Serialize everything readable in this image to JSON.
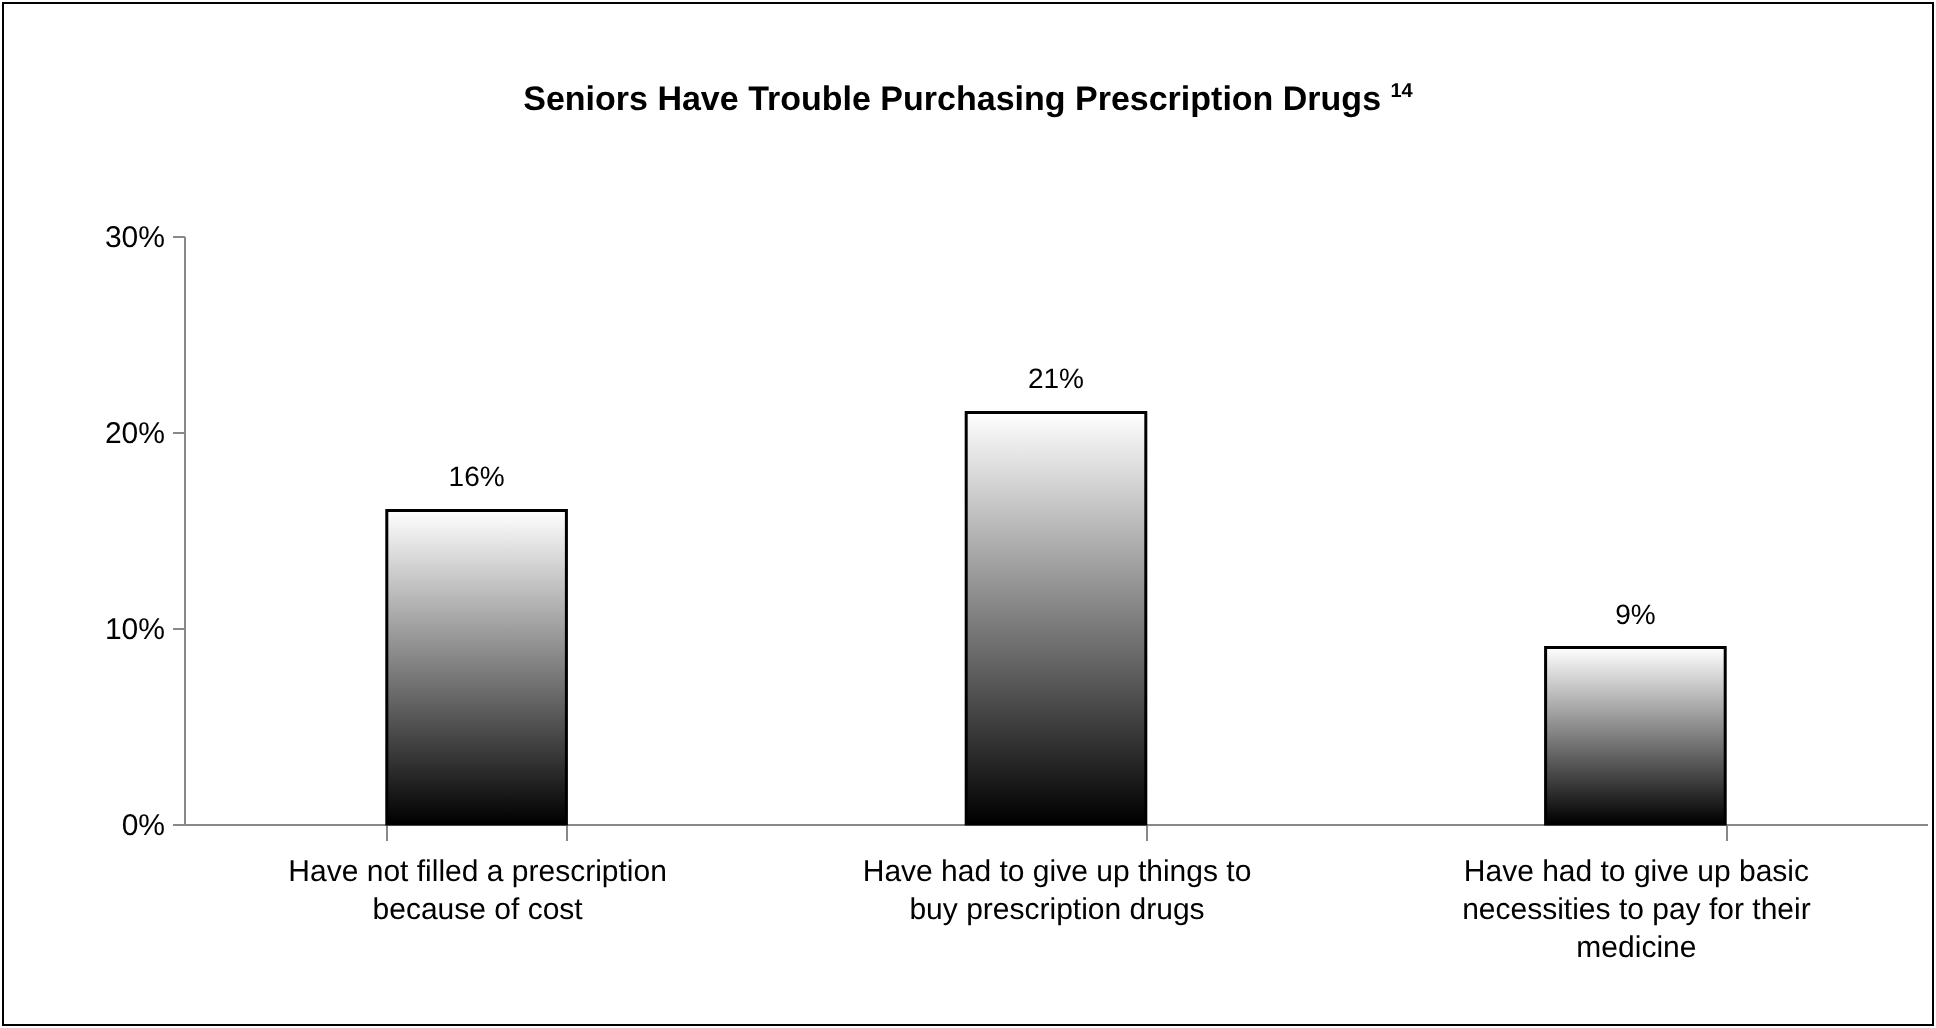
{
  "chart_data": {
    "type": "bar",
    "title": "Seniors Have Trouble Purchasing Prescription Drugs $^{14}$",
    "categories": [
      "Have not filled a prescription because of cost",
      "Have had to give up things to buy prescription drugs",
      "Have had to give up basic necessities to pay for their medicine"
    ],
    "values": [
      16,
      21,
      9
    ],
    "value_labels": [
      "16%",
      "21%",
      "9%"
    ],
    "color": "#000000",
    "ylim": [
      0,
      30
    ],
    "yticks": [
      {
        "value": 0,
        "label": "0%"
      },
      {
        "value": 10,
        "label": "10%"
      },
      {
        "value": 20,
        "label": "20%"
      },
      {
        "value": 30,
        "label": "30%"
      }
    ],
    "grid": false
  }
}
